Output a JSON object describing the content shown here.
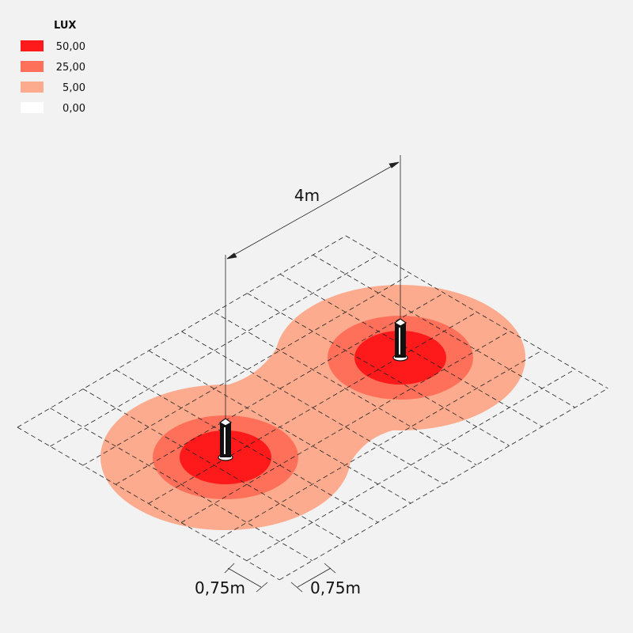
{
  "legend": {
    "title": "LUX",
    "items": [
      {
        "label": "50,00",
        "color": "#fe1a1a"
      },
      {
        "label": "25,00",
        "color": "#fe705a"
      },
      {
        "label": "5,00",
        "color": "#fdab8e"
      },
      {
        "label": "0,00",
        "color": "#ffffff"
      }
    ]
  },
  "dimensions": {
    "spacing": "4m",
    "cell_left": "0,75m",
    "cell_right": "0,75m"
  }
}
